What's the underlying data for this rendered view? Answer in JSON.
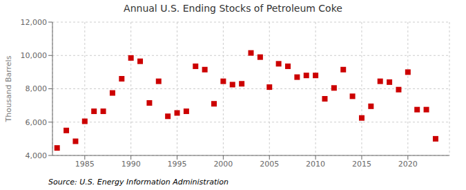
{
  "chart_data": {
    "type": "scatter",
    "title": "Annual U.S. Ending Stocks of Petroleum Coke",
    "ylabel": "Thousand Barrels",
    "annotation": "Source: U.S. Energy Information Administration",
    "x": [
      1982,
      1983,
      1984,
      1985,
      1986,
      1987,
      1988,
      1989,
      1990,
      1991,
      1992,
      1993,
      1994,
      1995,
      1996,
      1997,
      1998,
      1999,
      2000,
      2001,
      2002,
      2003,
      2004,
      2005,
      2006,
      2007,
      2008,
      2009,
      2010,
      2011,
      2012,
      2013,
      2014,
      2015,
      2016,
      2017,
      2018,
      2019,
      2020,
      2021,
      2022,
      2023
    ],
    "values": [
      4450,
      5500,
      4850,
      6050,
      6650,
      6650,
      7750,
      8600,
      9850,
      9650,
      7150,
      8450,
      6350,
      6550,
      6650,
      9350,
      9150,
      7100,
      8450,
      8250,
      8300,
      10150,
      9900,
      8100,
      9500,
      9350,
      8700,
      8800,
      8800,
      7400,
      8050,
      9150,
      7550,
      6250,
      6950,
      8450,
      8400,
      7950,
      9000,
      6750,
      6750,
      5000
    ],
    "color": "#cc0000",
    "marker": "square",
    "xlim": [
      1981.5,
      2024.5
    ],
    "xticks": [
      1985,
      1990,
      1995,
      2000,
      2005,
      2010,
      2015,
      2020
    ],
    "ylim": [
      4000,
      12000
    ],
    "yticks": [
      {
        "value": 4000,
        "label": "4,000"
      },
      {
        "value": 6000,
        "label": "6,000"
      },
      {
        "value": 8000,
        "label": "8,000"
      },
      {
        "value": 10000,
        "label": "10,000"
      },
      {
        "value": 12000,
        "label": "12,000"
      }
    ],
    "grid": true
  }
}
